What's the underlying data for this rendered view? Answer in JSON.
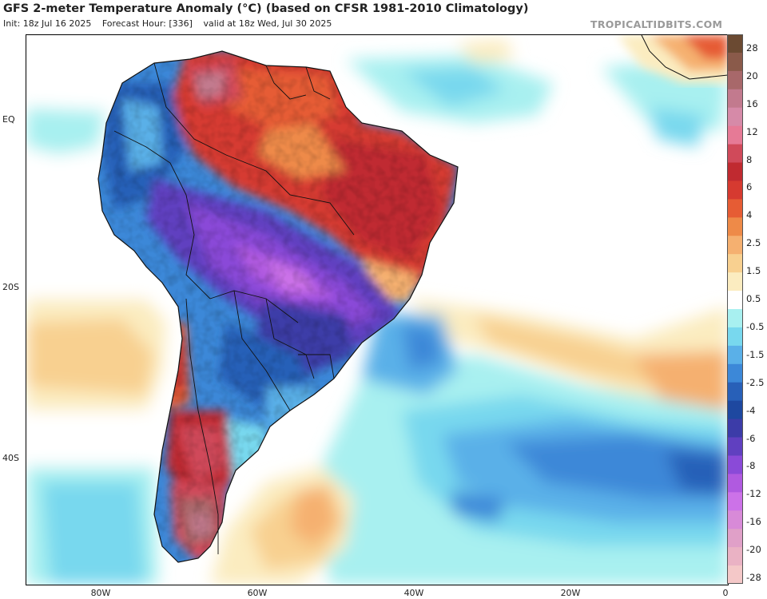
{
  "header": {
    "title": "GFS 2-meter Temperature Anomaly (°C) (based on CFSR 1981-2010 Climatology)",
    "init": "Init: 18z Jul 16 2025",
    "forecast_hour": "Forecast Hour: [336]",
    "valid": "valid at 18z Wed, Jul 30 2025",
    "brand": "TROPICALTIDBITS.COM"
  },
  "map": {
    "lat_labels": [
      "EQ",
      "20S",
      "40S"
    ],
    "lon_labels": [
      "80W",
      "60W",
      "40W",
      "20W",
      "0"
    ]
  },
  "colorbar": {
    "labels": [
      "28",
      "20",
      "16",
      "12",
      "8",
      "6",
      "4",
      "2.5",
      "1.5",
      "0.5",
      "-0.5",
      "-1.5",
      "-2.5",
      "-4",
      "-6",
      "-8",
      "-12",
      "-16",
      "-20",
      "-28"
    ],
    "colors": [
      "#6b4a32",
      "#8a5a4a",
      "#a8686a",
      "#c27a8e",
      "#d68aa8",
      "#e67a96",
      "#d04a5a",
      "#c02a30",
      "#d63a30",
      "#e65c34",
      "#ee8a48",
      "#f5b070",
      "#f8d090",
      "#fbecc0",
      "#ffffff",
      "#a8f0f0",
      "#78d8ee",
      "#5ab0e8",
      "#3c88d8",
      "#2860b8",
      "#1e48a0",
      "#3c3ca8",
      "#6040c0",
      "#8a4ad8",
      "#b05ae0",
      "#cc72e8",
      "#d88ad8",
      "#e0a0c8",
      "#eab2c4",
      "#f4c8c8"
    ]
  }
}
